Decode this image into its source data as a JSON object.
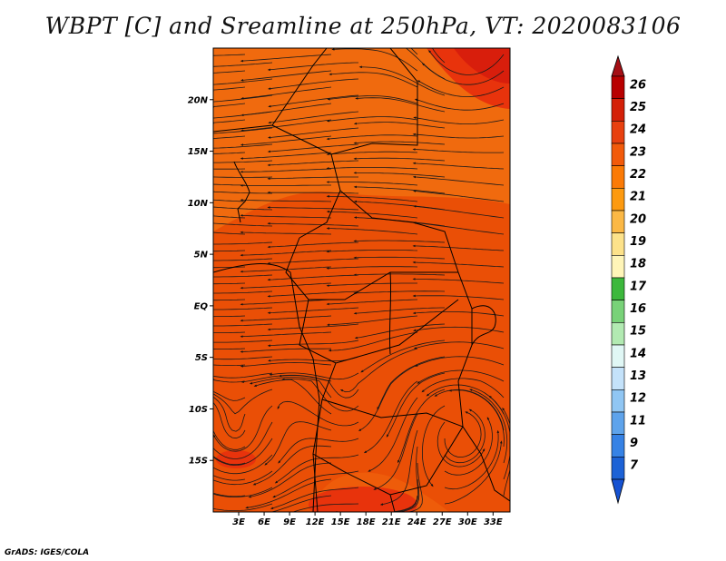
{
  "title": "WBPT [C] and Sreamline at 250hPa, VT: 2020083106",
  "credit": "GrADS: IGES/COLA",
  "map": {
    "lon_range": [
      0,
      35
    ],
    "lat_range": [
      -20,
      25
    ],
    "lat_ticks": [
      {
        "value": 20,
        "label": "20N"
      },
      {
        "value": 15,
        "label": "15N"
      },
      {
        "value": 10,
        "label": "10N"
      },
      {
        "value": 5,
        "label": "5N"
      },
      {
        "value": 0,
        "label": "EQ"
      },
      {
        "value": -5,
        "label": "5S"
      },
      {
        "value": -10,
        "label": "10S"
      },
      {
        "value": -15,
        "label": "15S"
      }
    ],
    "lon_ticks": [
      {
        "value": 3,
        "label": "3E"
      },
      {
        "value": 6,
        "label": "6E"
      },
      {
        "value": 9,
        "label": "9E"
      },
      {
        "value": 12,
        "label": "12E"
      },
      {
        "value": 15,
        "label": "15E"
      },
      {
        "value": 18,
        "label": "18E"
      },
      {
        "value": 21,
        "label": "21E"
      },
      {
        "value": 24,
        "label": "24E"
      },
      {
        "value": 27,
        "label": "27E"
      },
      {
        "value": 30,
        "label": "30E"
      },
      {
        "value": 33,
        "label": "33E"
      }
    ]
  },
  "colorbar": {
    "levels": [
      "26",
      "25",
      "24",
      "23",
      "22",
      "21",
      "20",
      "19",
      "18",
      "17",
      "16",
      "15",
      "14",
      "13",
      "12",
      "11",
      "9",
      "7"
    ],
    "colors": {
      "top_triangle": "#a50f15",
      "bands": [
        "#b80000",
        "#d42008",
        "#e8400f",
        "#f25a0a",
        "#fb7a05",
        "#fd9a10",
        "#fbb845",
        "#fde28a",
        "#fff5b8",
        "#3cb83c",
        "#78d278",
        "#b2eab2",
        "#e0f7f5",
        "#c4e2fa",
        "#90c6f3",
        "#5ea3eb",
        "#3682e5",
        "#1c62d6"
      ],
      "bottom_triangle": "#1652d2"
    }
  },
  "field_colors": {
    "base": "#ea4f06",
    "warm_band": "#f06a0e",
    "south": "#ee5c0a",
    "hot": "#e8330c",
    "hotspot": "#d81e0c"
  }
}
